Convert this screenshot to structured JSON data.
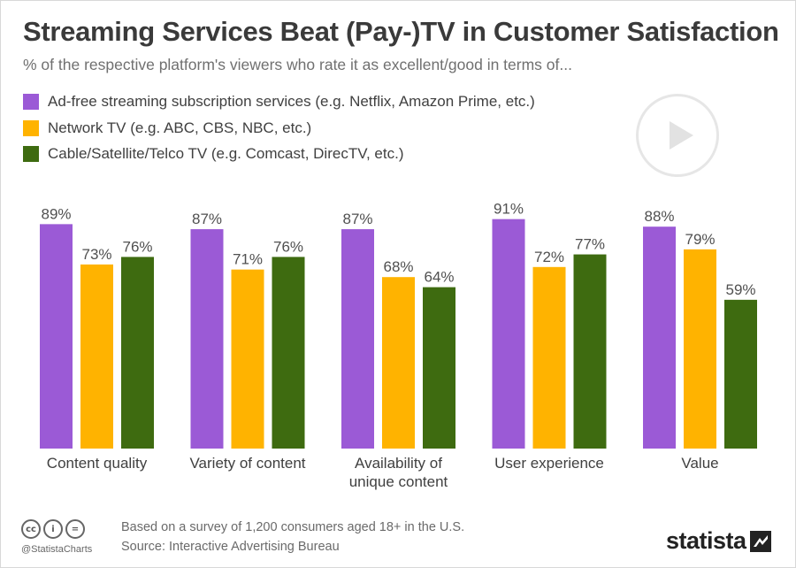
{
  "title": "Streaming Services Beat (Pay-)TV in Customer Satisfaction",
  "subtitle": "% of the respective platform's viewers who rate it as excellent/good in terms of...",
  "chart_data": {
    "type": "bar",
    "categories": [
      "Content quality",
      "Variety of content",
      "Availability of unique content",
      "User experience",
      "Value"
    ],
    "category_lines": [
      [
        "Content quality"
      ],
      [
        "Variety of content"
      ],
      [
        "Availability of",
        "unique content"
      ],
      [
        "User experience"
      ],
      [
        "Value"
      ]
    ],
    "series": [
      {
        "name": "Ad-free streaming subscription services (e.g. Netflix, Amazon Prime, etc.)",
        "color": "#9b5ad6",
        "values": [
          89,
          87,
          87,
          91,
          88
        ]
      },
      {
        "name": "Network TV (e.g. ABC, CBS, NBC, etc.)",
        "color": "#ffb300",
        "values": [
          73,
          71,
          68,
          72,
          79
        ]
      },
      {
        "name": "Cable/Satellite/Telco TV (e.g. Comcast, DirecTV, etc.)",
        "color": "#3e6b10",
        "values": [
          76,
          76,
          64,
          77,
          59
        ]
      }
    ],
    "value_suffix": "%",
    "ylim": [
      0,
      100
    ],
    "grid": false,
    "legend_position": "top-left"
  },
  "footer": {
    "note": "Based on a survey of 1,200 consumers aged 18+ in the U.S.",
    "source": "Source: Interactive Advertising Bureau",
    "handle": "@StatistaCharts",
    "cc_icons": [
      "cc",
      "i",
      "="
    ],
    "logo": "statista"
  }
}
